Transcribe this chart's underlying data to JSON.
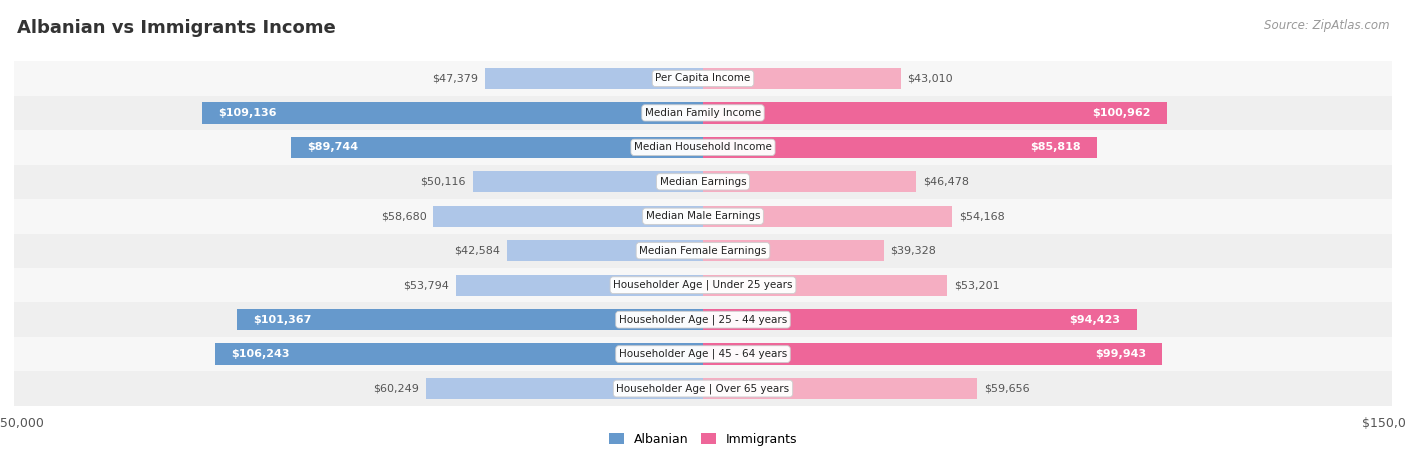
{
  "title": "Albanian vs Immigrants Income",
  "source": "Source: ZipAtlas.com",
  "categories": [
    "Per Capita Income",
    "Median Family Income",
    "Median Household Income",
    "Median Earnings",
    "Median Male Earnings",
    "Median Female Earnings",
    "Householder Age | Under 25 years",
    "Householder Age | 25 - 44 years",
    "Householder Age | 45 - 64 years",
    "Householder Age | Over 65 years"
  ],
  "albanian": [
    47379,
    109136,
    89744,
    50116,
    58680,
    42584,
    53794,
    101367,
    106243,
    60249
  ],
  "immigrants": [
    43010,
    100962,
    85818,
    46478,
    54168,
    39328,
    53201,
    94423,
    99943,
    59656
  ],
  "alb_color_light": "#aec6e8",
  "alb_color_strong": "#6699cc",
  "imm_color_light": "#f5aec2",
  "imm_color_strong": "#ee6699",
  "max_val": 150000,
  "strong_threshold": 80000,
  "row_bg_even": "#f7f7f7",
  "row_bg_odd": "#efefef",
  "fig_bg": "#ffffff",
  "label_dark": "#555555",
  "label_white": "#ffffff",
  "legend_albanian": "Albanian",
  "legend_immigrants": "Immigrants",
  "title_fontsize": 13,
  "source_fontsize": 8.5,
  "bar_label_fontsize": 8,
  "cat_label_fontsize": 7.5
}
